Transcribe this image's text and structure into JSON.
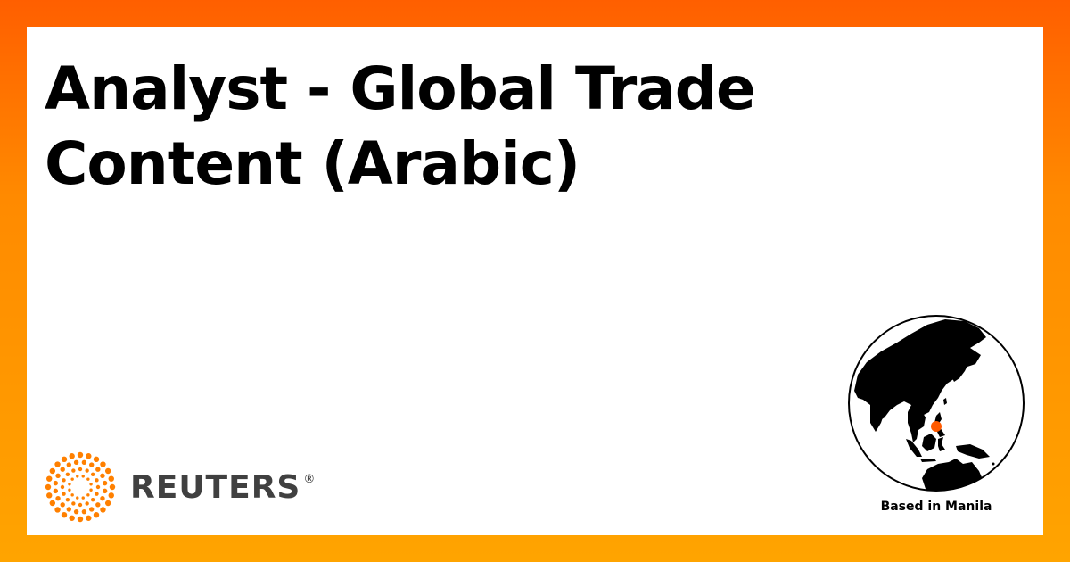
{
  "job": {
    "title": "Analyst - Global Trade Content (Arabic)"
  },
  "brand": {
    "name": "REUTERS",
    "registered": "®",
    "accent_color": "#ff8000",
    "wordmark_color": "#404040"
  },
  "location": {
    "label": "Based in Manila",
    "marker_color": "#ff5a00"
  },
  "icons": {
    "logo": "reuters-dot-ring-logo",
    "globe": "globe-asia-pacific-icon",
    "marker": "location-dot-icon"
  }
}
